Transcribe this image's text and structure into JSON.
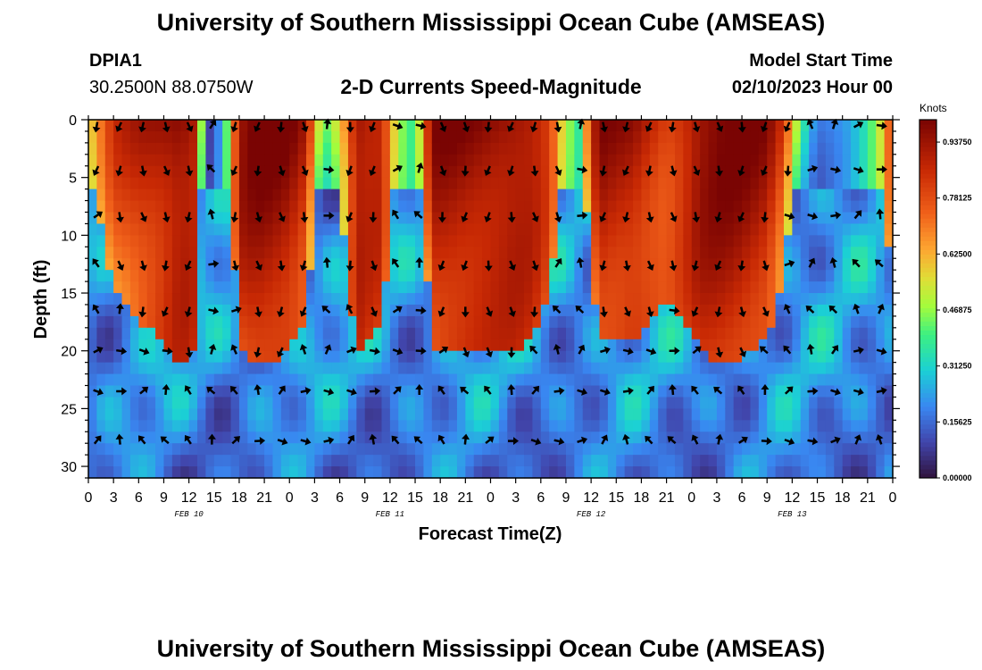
{
  "header": {
    "title": "University of Southern Mississippi Ocean Cube (AMSEAS)",
    "station_id": "DPIA1",
    "station_coords": "30.2500N  88.0750W",
    "model_start_label": "Model Start Time",
    "model_start_value": "02/10/2023 Hour 00"
  },
  "footer": {
    "title": "University of Southern Mississippi Ocean Cube (AMSEAS)"
  },
  "chart_data": {
    "type": "heatmap",
    "title": "2-D Currents Speed-Magnitude",
    "xlabel": "Forecast Time(Z)",
    "ylabel": "Depth (ft)",
    "x_tick_labels": [
      "0",
      "3",
      "6",
      "9",
      "12",
      "15",
      "18",
      "21",
      "0",
      "3",
      "6",
      "9",
      "12",
      "15",
      "18",
      "21",
      "0",
      "3",
      "6",
      "9",
      "12",
      "15",
      "18",
      "21",
      "0",
      "3",
      "6",
      "9",
      "12",
      "15",
      "18",
      "21",
      "0"
    ],
    "x_day_labels": [
      {
        "label": "FEB 10",
        "hour": 12
      },
      {
        "label": "FEB 11",
        "hour": 36
      },
      {
        "label": "FEB 12",
        "hour": 60
      },
      {
        "label": "FEB 13",
        "hour": 84
      }
    ],
    "xlim": [
      0,
      96
    ],
    "y_ticks": [
      0,
      5,
      10,
      15,
      20,
      25,
      30
    ],
    "ylim": [
      0,
      31
    ],
    "colorbar": {
      "title": "Knots",
      "tick_labels": [
        "0.00000",
        "0.15625",
        "0.31250",
        "0.46875",
        "0.62500",
        "0.78125",
        "0.93750"
      ],
      "ticks": [
        0,
        0.15625,
        0.3125,
        0.46875,
        0.625,
        0.78125,
        0.9375
      ],
      "range": [
        0,
        1.0
      ]
    },
    "surface_speed_profile": {
      "hours": [
        0,
        3,
        6,
        9,
        11,
        13,
        14,
        16,
        18,
        20,
        22,
        24,
        26,
        28,
        30,
        32,
        33,
        35,
        37,
        39,
        41,
        43,
        45,
        47,
        49,
        51,
        53,
        55,
        57,
        58.5,
        60,
        61,
        63,
        65,
        67,
        69,
        71,
        73,
        75,
        77,
        79,
        81,
        83,
        85,
        87,
        89,
        91,
        93,
        95,
        96
      ],
      "speed": [
        0.55,
        0.82,
        0.9,
        0.95,
        1.0,
        0.95,
        0.1,
        0.3,
        0.95,
        1.0,
        1.0,
        0.98,
        0.9,
        0.4,
        0.6,
        0.98,
        0.95,
        0.92,
        0.5,
        0.35,
        0.96,
        0.98,
        0.98,
        0.98,
        0.98,
        0.98,
        0.95,
        0.85,
        0.5,
        0.35,
        0.8,
        0.96,
        0.95,
        0.95,
        0.9,
        0.85,
        0.9,
        0.98,
        1.0,
        1.0,
        0.98,
        0.95,
        0.8,
        0.4,
        0.2,
        0.25,
        0.3,
        0.4,
        0.6,
        0.85
      ]
    },
    "arrow_rows_ft": [
      0.5,
      4.3,
      8.3,
      12.5,
      16.5,
      20.0,
      23.5,
      27.8
    ]
  }
}
